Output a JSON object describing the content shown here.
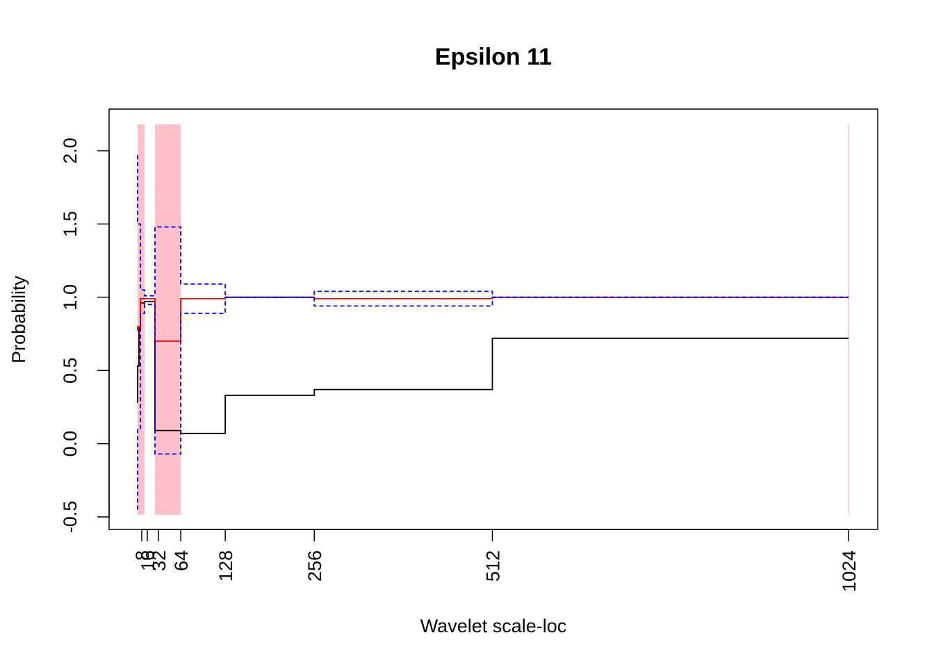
{
  "chart_data": {
    "type": "line",
    "title": "Epsilon 11",
    "xlabel": "Wavelet scale-loc",
    "ylabel": "Probability",
    "xlim": [
      1,
      1024
    ],
    "ylim": [
      -0.5,
      2.0
    ],
    "x_ticks": [
      {
        "value": 8,
        "label": "8"
      },
      {
        "value": 16,
        "label": "16"
      },
      {
        "value": 32,
        "label": "32"
      },
      {
        "value": 64,
        "label": "64"
      },
      {
        "value": 128,
        "label": "128"
      },
      {
        "value": 256,
        "label": "256"
      },
      {
        "value": 512,
        "label": "512"
      },
      {
        "value": 1024,
        "label": "1024"
      }
    ],
    "y_ticks": [
      {
        "value": -0.5,
        "label": "-0.5"
      },
      {
        "value": 0.0,
        "label": "0.0"
      },
      {
        "value": 0.5,
        "label": "0.5"
      },
      {
        "value": 1.0,
        "label": "1.0"
      },
      {
        "value": 1.5,
        "label": "1.5"
      },
      {
        "value": 2.0,
        "label": "2.0"
      }
    ],
    "highlight_bands": [
      {
        "x0": 2,
        "x1": 12,
        "color": "#FFC0CB"
      },
      {
        "x0": 27,
        "x1": 64,
        "color": "#FFC0CB"
      },
      {
        "x0": 1023.4,
        "x1": 1024.6,
        "color": "#FFC0CB"
      }
    ],
    "series": [
      {
        "color": "#000000",
        "dash": "solid",
        "points": [
          [
            2,
            0.28
          ],
          [
            2,
            0.53
          ],
          [
            4,
            0.53
          ],
          [
            4,
            0.79
          ],
          [
            6,
            0.79
          ],
          [
            6,
            0.96
          ],
          [
            12,
            0.96
          ],
          [
            12,
            0.97
          ],
          [
            27,
            0.97
          ],
          [
            27,
            0.09
          ],
          [
            64,
            0.09
          ],
          [
            64,
            0.07
          ],
          [
            128,
            0.07
          ],
          [
            128,
            0.33
          ],
          [
            256,
            0.33
          ],
          [
            256,
            0.37
          ],
          [
            512,
            0.37
          ],
          [
            512,
            0.72
          ],
          [
            1024,
            0.72
          ]
        ]
      },
      {
        "color": "#FF0000",
        "dash": "solid",
        "points": [
          [
            2,
            0.77
          ],
          [
            2,
            0.8
          ],
          [
            6,
            0.8
          ],
          [
            6,
            0.99
          ],
          [
            27,
            0.99
          ],
          [
            27,
            0.7
          ],
          [
            64,
            0.7
          ],
          [
            64,
            0.99
          ],
          [
            128,
            0.99
          ],
          [
            128,
            1.0
          ],
          [
            256,
            1.0
          ],
          [
            256,
            0.99
          ],
          [
            512,
            0.99
          ],
          [
            512,
            1.0
          ],
          [
            1024,
            1.0
          ]
        ]
      },
      {
        "color": "#0000FF",
        "dash": "dashed",
        "points": [
          [
            2,
            1.97
          ],
          [
            2,
            1.5
          ],
          [
            6,
            1.5
          ],
          [
            6,
            1.05
          ],
          [
            12,
            1.05
          ],
          [
            12,
            1.01
          ],
          [
            27,
            1.01
          ],
          [
            27,
            1.48
          ],
          [
            64,
            1.48
          ],
          [
            64,
            1.09
          ],
          [
            128,
            1.09
          ],
          [
            128,
            1.0
          ],
          [
            256,
            1.0
          ],
          [
            256,
            1.04
          ],
          [
            512,
            1.04
          ],
          [
            512,
            1.0
          ],
          [
            1024,
            1.0
          ]
        ]
      },
      {
        "color": "#0000FF",
        "dash": "dashed",
        "points": [
          [
            2,
            -0.45
          ],
          [
            2,
            0.1
          ],
          [
            6,
            0.1
          ],
          [
            6,
            0.89
          ],
          [
            12,
            0.89
          ],
          [
            12,
            0.95
          ],
          [
            27,
            0.95
          ],
          [
            27,
            -0.07
          ],
          [
            64,
            -0.07
          ],
          [
            64,
            0.89
          ],
          [
            128,
            0.89
          ],
          [
            128,
            1.0
          ],
          [
            256,
            1.0
          ],
          [
            256,
            0.94
          ],
          [
            512,
            0.94
          ],
          [
            512,
            1.0
          ],
          [
            1024,
            1.0
          ]
        ]
      }
    ]
  }
}
